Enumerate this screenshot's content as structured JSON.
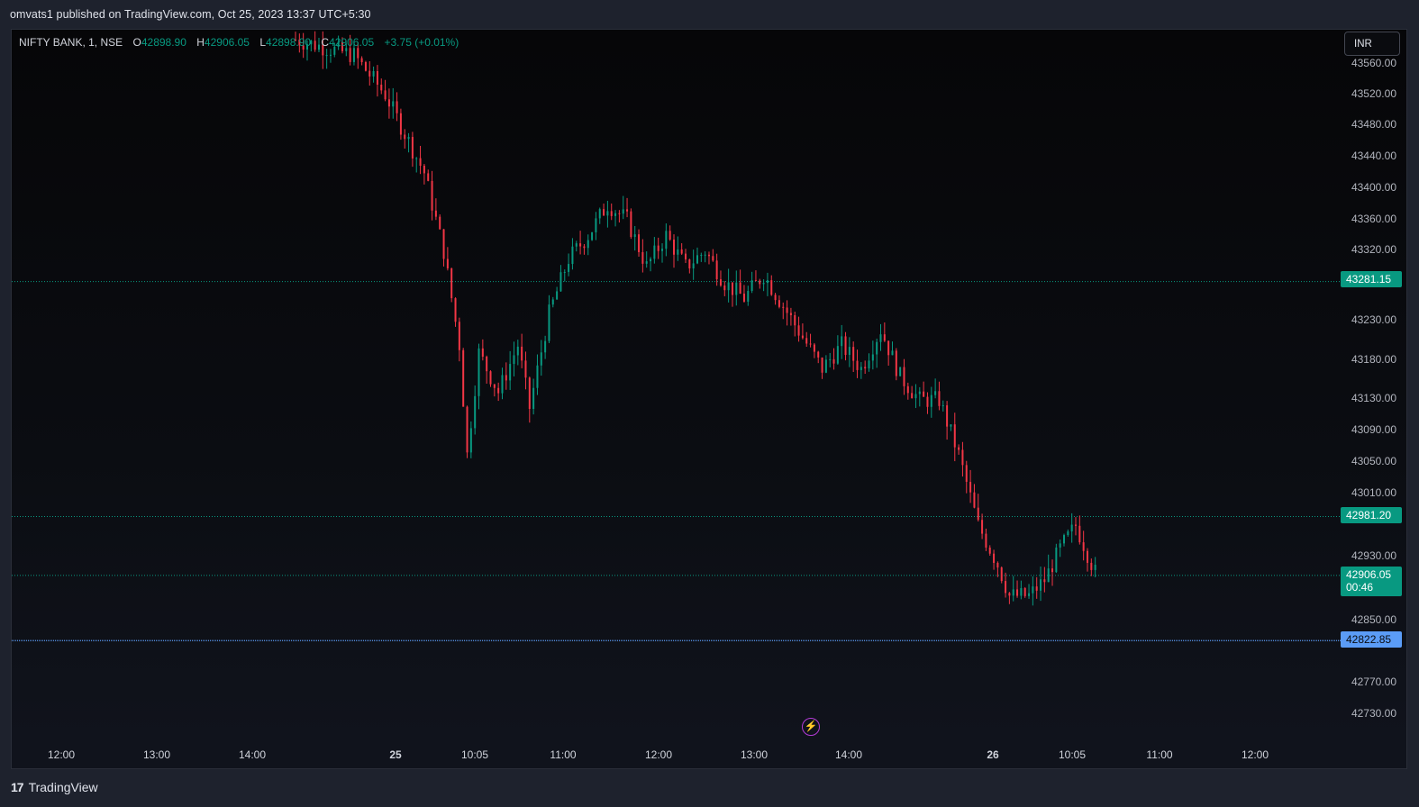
{
  "header": {
    "published_text": "omvats1 published on TradingView.com, Oct 25, 2023 13:37 UTC+5:30"
  },
  "legend": {
    "symbol": "NIFTY BANK, 1, NSE",
    "open_label": "O",
    "open": "42898.90",
    "high_label": "H",
    "high": "42906.05",
    "low_label": "L",
    "low": "42898.90",
    "close_label": "C",
    "close": "42906.05",
    "change": "+3.75 (+0.01%)"
  },
  "currency": "INR",
  "price_axis": {
    "ticks": [
      "43560.00",
      "43520.00",
      "43480.00",
      "43440.00",
      "43400.00",
      "43360.00",
      "43320.00",
      "43230.00",
      "43180.00",
      "43130.00",
      "43090.00",
      "43050.00",
      "43010.00",
      "42930.00",
      "42850.00",
      "42770.00",
      "42730.00"
    ]
  },
  "price_labels": {
    "level_high": "43281.15",
    "level_mid": "42981.20",
    "current_price": "42906.05",
    "countdown": "00:46",
    "level_low": "42822.85"
  },
  "time_axis": {
    "ticks": [
      "12:00",
      "13:00",
      "14:00",
      "25",
      "10:05",
      "11:00",
      "12:00",
      "13:00",
      "14:00",
      "26",
      "10:05",
      "11:00",
      "12:00"
    ]
  },
  "colors": {
    "up": "#089981",
    "down": "#f23645",
    "level_line": "#089981",
    "low_line": "#5b9cf6",
    "accent": "#b33bd6"
  },
  "icons": {
    "lightning": "lightning-icon",
    "logo": "tradingview-logo"
  },
  "chart_data": {
    "type": "candlestick",
    "title": "NIFTY BANK, 1, NSE",
    "ylim": [
      42700,
      43580
    ],
    "close_path": [
      [
        0,
        43590
      ],
      [
        15,
        43570
      ],
      [
        23,
        43520
      ],
      [
        33,
        43420
      ],
      [
        38,
        43320
      ],
      [
        42,
        43200
      ],
      [
        44,
        43060
      ],
      [
        47,
        43190
      ],
      [
        52,
        43140
      ],
      [
        57,
        43200
      ],
      [
        60,
        43120
      ],
      [
        65,
        43240
      ],
      [
        70,
        43310
      ],
      [
        75,
        43340
      ],
      [
        80,
        43380
      ],
      [
        85,
        43360
      ],
      [
        90,
        43300
      ],
      [
        95,
        43340
      ],
      [
        100,
        43300
      ],
      [
        105,
        43320
      ],
      [
        110,
        43280
      ],
      [
        115,
        43260
      ],
      [
        120,
        43290
      ],
      [
        125,
        43250
      ],
      [
        130,
        43210
      ],
      [
        135,
        43170
      ],
      [
        140,
        43200
      ],
      [
        145,
        43170
      ],
      [
        150,
        43220
      ],
      [
        155,
        43160
      ],
      [
        160,
        43130
      ],
      [
        165,
        43130
      ],
      [
        170,
        43060
      ],
      [
        175,
        42970
      ],
      [
        180,
        42920
      ],
      [
        183,
        42880
      ],
      [
        188,
        42880
      ],
      [
        192,
        42900
      ],
      [
        196,
        42940
      ],
      [
        200,
        42970
      ],
      [
        205,
        42910
      ]
    ],
    "levels": {
      "horizontal_1": 43281.15,
      "horizontal_2": 42981.2,
      "horizontal_low": 42822.85,
      "last": 42906.05
    }
  }
}
